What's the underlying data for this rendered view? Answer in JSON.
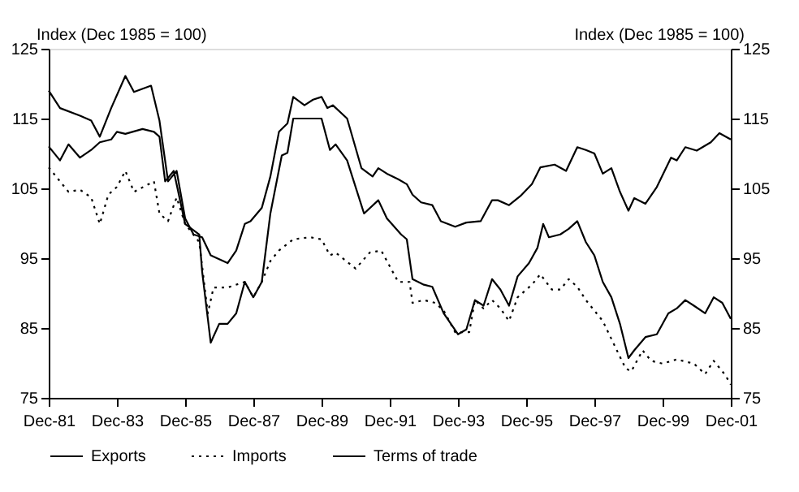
{
  "chart_data": {
    "type": "line",
    "ylabel": "Index (Dec 1985 = 100)",
    "y2label": "Index (Dec 1985 = 100)",
    "xlim": [
      "1981-12",
      "2001-12"
    ],
    "xticks": [
      {
        "value": "1981-12",
        "label": "Dec-81"
      },
      {
        "value": "1983-12",
        "label": "Dec-83"
      },
      {
        "value": "1985-12",
        "label": "Dec-85"
      },
      {
        "value": "1987-12",
        "label": "Dec-87"
      },
      {
        "value": "1989-12",
        "label": "Dec-89"
      },
      {
        "value": "1991-12",
        "label": "Dec-91"
      },
      {
        "value": "1993-12",
        "label": "Dec-93"
      },
      {
        "value": "1995-12",
        "label": "Dec-95"
      },
      {
        "value": "1997-12",
        "label": "Dec-97"
      },
      {
        "value": "1999-12",
        "label": "Dec-99"
      },
      {
        "value": "2001-12",
        "label": "Dec-01"
      }
    ],
    "ylim": [
      75,
      125
    ],
    "yticks": [
      75,
      85,
      95,
      105,
      115,
      125
    ],
    "y2lim": [
      75,
      125
    ],
    "y2ticks": [
      75,
      85,
      95,
      105,
      115,
      125
    ],
    "grid": false,
    "legend": "bottom",
    "marker": "none",
    "series": [
      {
        "name": "Exports",
        "color": "#000000",
        "line_style": "solid",
        "x": [
          "1981-12",
          "1982-04",
          "1982-07",
          "1982-11",
          "1983-03",
          "1983-06",
          "1983-10",
          "1983-12",
          "1984-03",
          "1984-09",
          "1985-01",
          "1985-03",
          "1985-05",
          "1985-08",
          "1985-12",
          "1986-05",
          "1986-06",
          "1986-09",
          "1986-12",
          "1987-03",
          "1987-06",
          "1987-09",
          "1987-12",
          "1988-03",
          "1988-06",
          "1988-10",
          "1988-12",
          "1989-02",
          "1989-08",
          "1989-12",
          "1990-03",
          "1990-05",
          "1990-09",
          "1991-03",
          "1991-08",
          "1991-11",
          "1992-04",
          "1992-06",
          "1992-08",
          "1992-12",
          "1993-03",
          "1993-07",
          "1993-12",
          "1994-03",
          "1994-06",
          "1994-09",
          "1994-12",
          "1995-03",
          "1995-06",
          "1995-09",
          "1996-01",
          "1996-04",
          "1996-06",
          "1996-08",
          "1996-12",
          "1997-03",
          "1997-06",
          "1997-09",
          "1997-12",
          "1998-03",
          "1998-06",
          "1998-09",
          "1998-12",
          "1999-02",
          "1999-06",
          "1999-10",
          "2000-02",
          "2000-05",
          "2000-08",
          "2000-11",
          "2001-03",
          "2001-06",
          "2001-09",
          "2001-12"
        ],
        "values": [
          111,
          109,
          111.3,
          109.4,
          110.5,
          111.6,
          112,
          113.1,
          112.8,
          113.5,
          113.1,
          112.4,
          106,
          107.5,
          99.9,
          98.4,
          93.1,
          82.9,
          85.6,
          85.6,
          87.1,
          91.6,
          89.4,
          91.6,
          101.4,
          109.7,
          110.1,
          115,
          115,
          115,
          110.5,
          111.3,
          109,
          101.4,
          103.3,
          100.7,
          98.4,
          97.7,
          92,
          91.2,
          90.9,
          87.1,
          84.1,
          84.8,
          89,
          88.2,
          92,
          90.5,
          88.2,
          92.4,
          94.3,
          96.5,
          99.9,
          98,
          98.4,
          99.2,
          100.3,
          97.3,
          95.4,
          91.6,
          89.4,
          85.6,
          80.7,
          81.8,
          83.7,
          84.1,
          87.1,
          87.8,
          89,
          88.2,
          87.1,
          89.4,
          88.6,
          86.3
        ]
      },
      {
        "name": "Imports",
        "color": "#000000",
        "line_style": "dotted",
        "x": [
          "1981-12",
          "1982-04",
          "1982-07",
          "1982-11",
          "1983-03",
          "1983-06",
          "1983-09",
          "1983-12",
          "1984-03",
          "1984-06",
          "1985-01",
          "1985-03",
          "1985-06",
          "1985-09",
          "1985-12",
          "1986-05",
          "1986-08",
          "1986-10",
          "1987-03",
          "1987-09",
          "1987-12",
          "1988-03",
          "1988-06",
          "1988-09",
          "1989-02",
          "1989-08",
          "1989-12",
          "1990-03",
          "1990-05",
          "1990-12",
          "1991-05",
          "1991-09",
          "1992-03",
          "1992-07",
          "1992-08",
          "1992-12",
          "1993-04",
          "1993-07",
          "1993-11",
          "1994-04",
          "1994-06",
          "1994-09",
          "1994-12",
          "1995-03",
          "1995-06",
          "1995-09",
          "1996-02",
          "1996-05",
          "1996-09",
          "1996-12",
          "1997-03",
          "1997-06",
          "1997-09",
          "1998-03",
          "1998-07",
          "1998-11",
          "1999-01",
          "1999-05",
          "1999-08",
          "1999-12",
          "2000-05",
          "2000-11",
          "2001-03",
          "2001-06",
          "2001-10",
          "2001-12"
        ],
        "values": [
          108,
          106,
          104.5,
          104.8,
          103.7,
          99.9,
          104.1,
          105.2,
          107.5,
          104.5,
          106,
          101.4,
          100.3,
          103.7,
          99.9,
          97.3,
          87.1,
          90.8,
          90.8,
          91.6,
          89.4,
          91.6,
          94.6,
          96.1,
          97.7,
          98,
          97.7,
          95.4,
          95.8,
          93.5,
          95.8,
          96.1,
          91.6,
          91.6,
          88.6,
          89,
          88.6,
          87.5,
          84.4,
          84.4,
          89,
          87.8,
          89,
          87.8,
          86,
          89.4,
          91.2,
          92.7,
          90.5,
          90.5,
          92,
          90.9,
          89,
          86,
          82.6,
          79.2,
          78.8,
          81.8,
          80.3,
          79.9,
          80.5,
          79.9,
          78.4,
          80.3,
          78.3,
          76.9
        ]
      },
      {
        "name": "Terms of trade",
        "color": "#000000",
        "line_style": "solid",
        "x": [
          "1981-12",
          "1982-04",
          "1982-11",
          "1983-03",
          "1983-06",
          "1983-10",
          "1984-03",
          "1984-06",
          "1984-12",
          "1985-03",
          "1985-06",
          "1985-09",
          "1985-12",
          "1986-03",
          "1986-06",
          "1986-09",
          "1987-03",
          "1987-06",
          "1987-09",
          "1987-11",
          "1988-03",
          "1988-06",
          "1988-09",
          "1988-12",
          "1989-02",
          "1989-06",
          "1989-09",
          "1989-12",
          "1990-02",
          "1990-04",
          "1990-09",
          "1991-02",
          "1991-06",
          "1991-08",
          "1991-11",
          "1992-03",
          "1992-06",
          "1992-08",
          "1992-11",
          "1993-03",
          "1993-06",
          "1993-11",
          "1994-03",
          "1994-08",
          "1994-12",
          "1995-02",
          "1995-06",
          "1995-10",
          "1996-02",
          "1996-05",
          "1996-10",
          "1997-02",
          "1997-06",
          "1997-09",
          "1997-12",
          "1998-03",
          "1998-06",
          "1998-09",
          "1998-12",
          "1999-02",
          "1999-06",
          "1999-10",
          "2000-03",
          "2000-05",
          "2000-08",
          "2000-12",
          "2001-05",
          "2001-08",
          "2001-12"
        ],
        "values": [
          119,
          116.5,
          115.4,
          114.7,
          112.4,
          116.5,
          121.1,
          118.8,
          119.7,
          114.7,
          106,
          107.5,
          100.7,
          98.4,
          98,
          95.4,
          94.3,
          96.1,
          99.9,
          100.3,
          102.2,
          106.7,
          113.1,
          114.3,
          118.1,
          116.9,
          117.7,
          118.1,
          116.5,
          116.9,
          115,
          107.9,
          106.7,
          107.9,
          107.1,
          106.3,
          105.6,
          104.1,
          103,
          102.6,
          100.3,
          99.5,
          100.1,
          100.3,
          103.3,
          103.3,
          102.6,
          103.9,
          105.6,
          108,
          108.4,
          107.5,
          110.9,
          110.5,
          110,
          107.1,
          107.9,
          104.5,
          101.8,
          103.6,
          102.8,
          105.2,
          109.4,
          109,
          110.9,
          110.4,
          111.6,
          112.9,
          112
        ]
      }
    ]
  }
}
